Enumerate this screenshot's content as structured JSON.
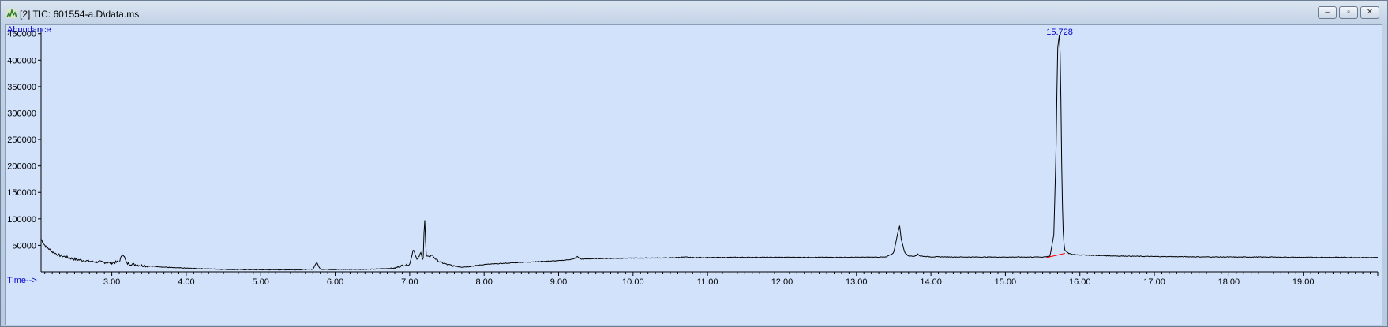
{
  "window": {
    "title": "[2] TIC: 601554-a.D\\data.ms",
    "icon": "chromatogram-icon",
    "controls": [
      "minimize-icon",
      "restore-icon",
      "close-icon"
    ]
  },
  "chart_data": {
    "type": "line",
    "ylabel": "Abundance",
    "xlabel": "Time-->",
    "xlim": [
      2.05,
      20.0
    ],
    "ylim": [
      0,
      460000
    ],
    "x_ticks": [
      "3.00",
      "4.00",
      "5.00",
      "6.00",
      "7.00",
      "8.00",
      "9.00",
      "10.00",
      "11.00",
      "12.00",
      "13.00",
      "14.00",
      "15.00",
      "16.00",
      "17.00",
      "18.00",
      "19.00"
    ],
    "y_ticks": [
      "50000",
      "100000",
      "150000",
      "200000",
      "250000",
      "300000",
      "350000",
      "400000",
      "450000"
    ],
    "peak_label": "15.728",
    "colors": {
      "trace": "#000000",
      "labels": "#0000cc",
      "baseline_marker": "#ff0000",
      "plot_bg": "#d2e2fb"
    },
    "series": [
      {
        "x": [
          2.05,
          2.1,
          2.2,
          2.3,
          2.5,
          2.7,
          3.0,
          3.1,
          3.15,
          3.2,
          3.4,
          3.6,
          3.8,
          4.0,
          4.3,
          4.6,
          5.0,
          5.5,
          5.7,
          5.75,
          5.8,
          6.0,
          6.5,
          6.8,
          6.9,
          7.0,
          7.05,
          7.1,
          7.15,
          7.18,
          7.2,
          7.22,
          7.25,
          7.3,
          7.35,
          7.4,
          7.5,
          7.6,
          7.7,
          7.8,
          7.9,
          8.0,
          8.5,
          9.0,
          9.2,
          9.25,
          9.3,
          9.5,
          10.0,
          10.5,
          10.7,
          10.8,
          11.0,
          11.5,
          12.0,
          12.5,
          13.0,
          13.4,
          13.5,
          13.55,
          13.58,
          13.6,
          13.65,
          13.7,
          13.8,
          13.82,
          13.85,
          14.0,
          14.5,
          15.0,
          15.5,
          15.6,
          15.65,
          15.68,
          15.7,
          15.72,
          15.728,
          15.74,
          15.76,
          15.78,
          15.8,
          15.85,
          15.9,
          16.0,
          16.5,
          17.0,
          17.5,
          18.0,
          18.5,
          19.0,
          19.5,
          20.0
        ],
        "y": [
          62000,
          50000,
          38000,
          31000,
          24000,
          20000,
          17000,
          19000,
          35000,
          16000,
          12000,
          10000,
          8000,
          7000,
          5500,
          4500,
          4000,
          4000,
          5000,
          18000,
          5000,
          4500,
          5000,
          7000,
          12000,
          14000,
          44000,
          22000,
          36000,
          20000,
          108000,
          30000,
          28000,
          32000,
          24000,
          19000,
          14000,
          11000,
          9000,
          10000,
          12000,
          14000,
          18000,
          21000,
          24000,
          29000,
          24000,
          25000,
          26000,
          26500,
          28000,
          27000,
          27000,
          27500,
          27500,
          27500,
          27500,
          28000,
          36000,
          70000,
          88000,
          62000,
          36000,
          30000,
          30000,
          35000,
          30000,
          28500,
          28000,
          28000,
          28000,
          30000,
          70000,
          230000,
          420000,
          445000,
          450000,
          380000,
          150000,
          60000,
          40000,
          35000,
          33000,
          32000,
          30000,
          29000,
          28500,
          28000,
          28000,
          27500,
          27500,
          27000
        ]
      }
    ]
  }
}
